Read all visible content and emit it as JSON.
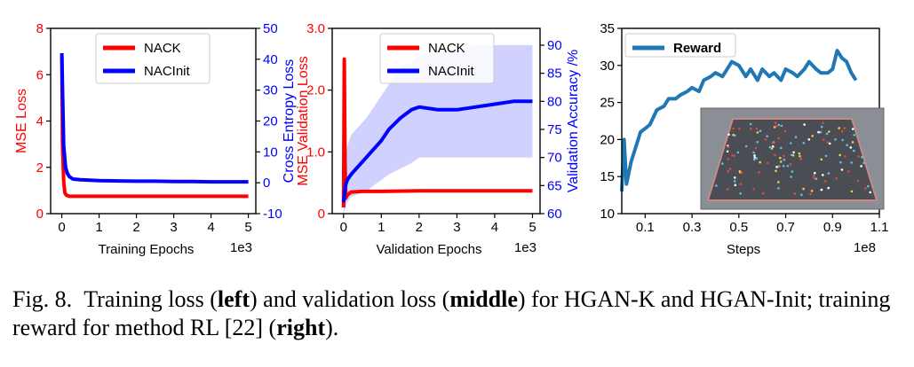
{
  "caption": {
    "prefix": "Fig. 8.",
    "t1": "Training loss (",
    "b1": "left",
    "t2": ") and validation loss (",
    "b2": "middle",
    "t3": ") for HGAN-K and HGAN-Init; training reward for method RL [22] (",
    "b3": "right",
    "t4": ")."
  },
  "chart_data": [
    {
      "type": "line",
      "xlabel": "Training Epochs",
      "x_multiplier": "1e3",
      "ylabel": "MSE Loss",
      "y2label": "Cross Entropy Loss",
      "xlim": [
        -0.3,
        5.2
      ],
      "ylim": [
        0,
        8
      ],
      "y2lim": [
        -10,
        50
      ],
      "xticks": [
        0,
        1,
        2,
        3,
        4,
        5
      ],
      "yticks": [
        0,
        2,
        4,
        6,
        8
      ],
      "y2ticks": [
        -10,
        0,
        10,
        20,
        30,
        40,
        50
      ],
      "legend_position": "top-center",
      "colors": {
        "left_axis": "#ff0000",
        "right_axis": "#0000ff"
      },
      "series": [
        {
          "name": "NACK",
          "axis": "left",
          "color": "#ff0000",
          "x": [
            0,
            0.02,
            0.05,
            0.08,
            0.12,
            0.2,
            0.5,
            1,
            2,
            3,
            4,
            5
          ],
          "values": [
            6.8,
            3.0,
            1.4,
            0.9,
            0.8,
            0.75,
            0.75,
            0.75,
            0.75,
            0.75,
            0.75,
            0.75
          ]
        },
        {
          "name": "NACInit",
          "axis": "right",
          "color": "#0000ff",
          "x": [
            0,
            0.02,
            0.05,
            0.1,
            0.15,
            0.2,
            0.3,
            0.5,
            1,
            1.5,
            2,
            2.5,
            3,
            3.5,
            4,
            4.5,
            5
          ],
          "values": [
            42,
            30,
            12,
            5,
            3,
            2,
            1.2,
            1,
            0.7,
            0.6,
            0.5,
            0.5,
            0.4,
            0.4,
            0.3,
            0.3,
            0.3
          ]
        }
      ]
    },
    {
      "type": "line",
      "xlabel": "Validation Epochs",
      "x_multiplier": "1e3",
      "ylabel": "MSE Validation Loss",
      "y2label": "Validation Accuracy /%",
      "xlim": [
        -0.3,
        5.2
      ],
      "ylim": [
        0,
        3
      ],
      "y2lim": [
        60,
        93
      ],
      "xticks": [
        0,
        1,
        2,
        3,
        4,
        5
      ],
      "yticks": [
        0.0,
        1.0,
        2.0,
        3.0
      ],
      "ytick_labels": [
        "0",
        "1.0",
        "2.0",
        "3.0"
      ],
      "y2ticks": [
        60,
        65,
        70,
        75,
        80,
        85,
        90
      ],
      "legend_position": "top-center",
      "series": [
        {
          "name": "NACK",
          "axis": "left",
          "color": "#ff0000",
          "x": [
            0,
            0.02,
            0.04,
            0.06,
            0.1,
            0.2,
            0.5,
            1,
            2,
            3,
            4,
            5
          ],
          "values": [
            0.1,
            2.5,
            0.8,
            0.25,
            0.3,
            0.35,
            0.36,
            0.36,
            0.37,
            0.37,
            0.37,
            0.37
          ]
        },
        {
          "name": "NACInit",
          "axis": "right",
          "color": "#0000ff",
          "x": [
            0,
            0.05,
            0.1,
            0.2,
            0.4,
            0.6,
            0.8,
            1,
            1.2,
            1.5,
            1.8,
            2,
            2.5,
            3,
            3.5,
            4,
            4.5,
            5
          ],
          "values": [
            62,
            65,
            66,
            67,
            68.5,
            70,
            71.5,
            73,
            75,
            77,
            78.5,
            79,
            78.5,
            78.5,
            79,
            79.5,
            80,
            80
          ],
          "band_low": [
            60,
            61,
            62,
            63,
            63.5,
            64,
            65,
            66,
            67,
            68,
            69,
            70,
            70,
            70,
            70,
            70,
            70,
            70
          ],
          "band_high": [
            64,
            69,
            72,
            74,
            75.5,
            77,
            79,
            81,
            83,
            86,
            87,
            88,
            89,
            89,
            90,
            90,
            90,
            90
          ]
        }
      ]
    },
    {
      "type": "line",
      "xlabel": "Steps",
      "x_multiplier": "1e8",
      "xlim": [
        0,
        1.1
      ],
      "ylim": [
        10,
        35
      ],
      "xticks": [
        0.1,
        0.3,
        0.5,
        0.7,
        0.9,
        1.1
      ],
      "xtick_labels": [
        "0.1",
        "0.3",
        "0.5",
        "0.7",
        "0.9",
        "1.1"
      ],
      "yticks": [
        10,
        15,
        20,
        25,
        30,
        35
      ],
      "legend_position": "top-left",
      "series": [
        {
          "name": "Reward",
          "color": "#1f77b4",
          "x": [
            0.0,
            0.01,
            0.02,
            0.04,
            0.06,
            0.08,
            0.1,
            0.12,
            0.15,
            0.18,
            0.2,
            0.23,
            0.25,
            0.28,
            0.3,
            0.33,
            0.35,
            0.38,
            0.4,
            0.43,
            0.45,
            0.47,
            0.5,
            0.53,
            0.55,
            0.58,
            0.6,
            0.63,
            0.65,
            0.68,
            0.7,
            0.73,
            0.75,
            0.78,
            0.8,
            0.83,
            0.85,
            0.88,
            0.9,
            0.92,
            0.94,
            0.96,
            0.98,
            1.0
          ],
          "values": [
            13,
            20,
            14,
            17,
            19,
            21,
            21.5,
            22,
            24,
            24.5,
            25.5,
            25.5,
            26,
            26.5,
            27,
            26.5,
            28,
            28.5,
            29,
            28.5,
            29.5,
            30.5,
            30,
            28.5,
            29.5,
            28,
            29.5,
            28.5,
            29,
            28,
            29.5,
            29,
            28.5,
            29.5,
            30.5,
            29.5,
            29,
            29,
            29.5,
            32,
            31,
            30.5,
            29,
            28
          ]
        }
      ],
      "inset_image": "rendered simulation scene with colored agents on a gray plane"
    }
  ]
}
